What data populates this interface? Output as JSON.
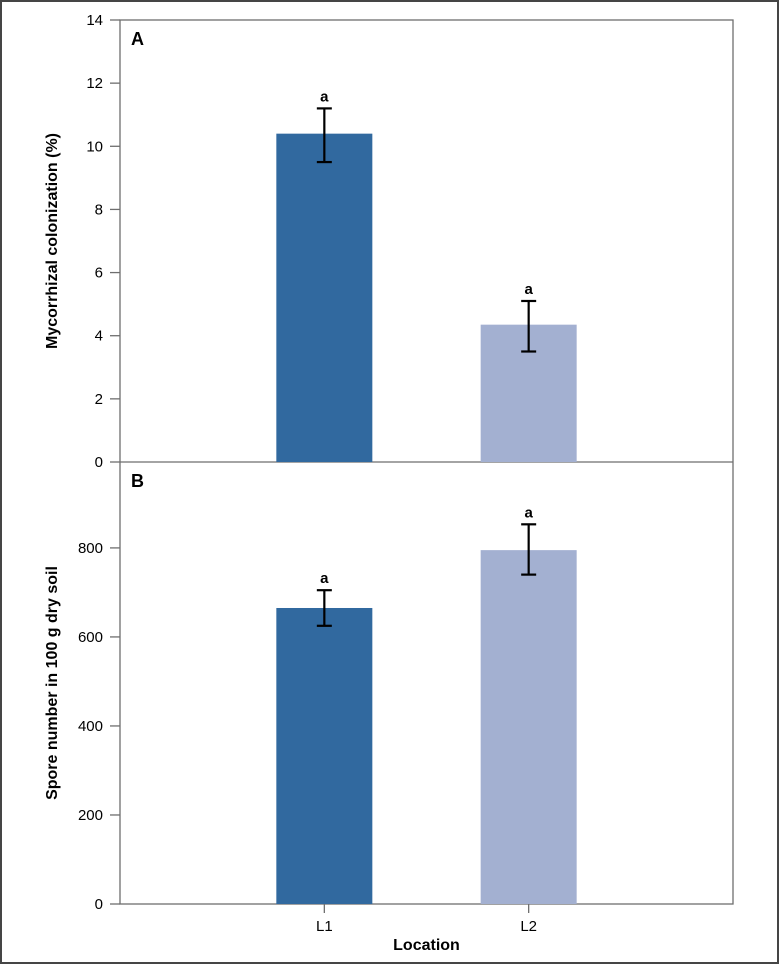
{
  "figure": {
    "description_title": "Two-panel bar chart of mycorrhizal colonization and spore number by location",
    "x_axis_title": "Location"
  },
  "chart_data": {
    "type": "bar",
    "categories": [
      "L1",
      "L2"
    ],
    "xlabel": "Location",
    "bar_colors": [
      "#31699F",
      "#A3B0D1"
    ],
    "error_bar_color": "#000000",
    "frame_color": "#6e6e6e",
    "outer_border_color": "#454545",
    "panels": [
      {
        "label": "A",
        "ylabel": "Mycorrhizal colonization (%)",
        "ylim": [
          0,
          14
        ],
        "yticks": [
          0,
          2,
          4,
          6,
          8,
          10,
          12,
          14
        ],
        "grid": false,
        "bars": [
          {
            "category": "L1",
            "value": 10.4,
            "error_low": 9.5,
            "error_high": 11.2,
            "sig_letter": "a"
          },
          {
            "category": "L2",
            "value": 4.35,
            "error_low": 3.5,
            "error_high": 5.1,
            "sig_letter": "a"
          }
        ]
      },
      {
        "label": "B",
        "ylabel": "Spore number in 100 g dry soil",
        "ylim": [
          0,
          993
        ],
        "yticks": [
          0,
          200,
          400,
          600,
          800
        ],
        "grid": false,
        "bars": [
          {
            "category": "L1",
            "value": 665,
            "error_low": 625,
            "error_high": 705,
            "sig_letter": "a"
          },
          {
            "category": "L2",
            "value": 795,
            "error_low": 740,
            "error_high": 853,
            "sig_letter": "a"
          }
        ]
      }
    ]
  }
}
